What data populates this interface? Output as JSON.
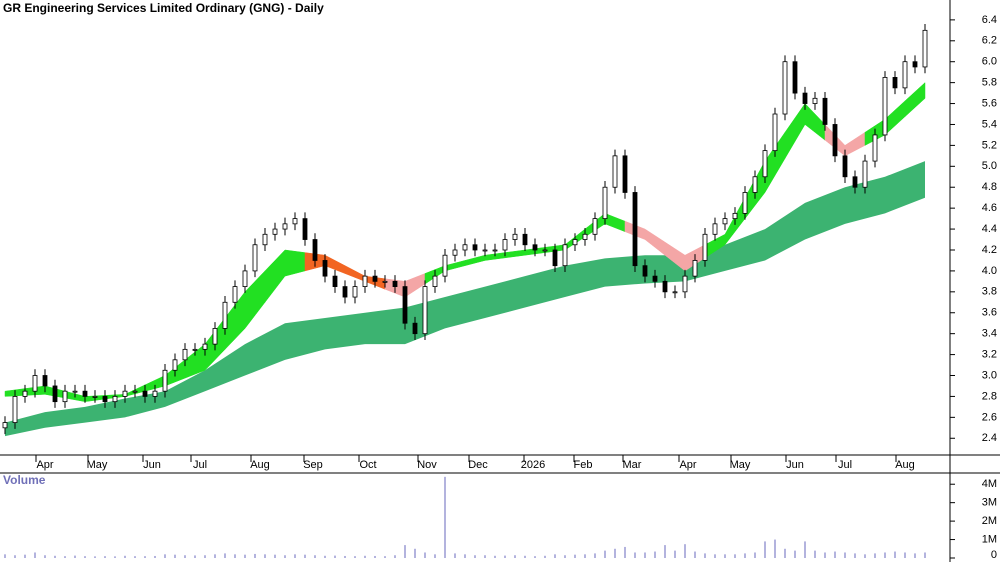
{
  "chart_data": [
    {
      "type": "candlestick",
      "title": "GR Engineering Services Limited Ordinary (GNG) - Daily",
      "open": [
        2.5,
        2.55,
        2.8,
        2.85,
        3.0,
        2.9,
        2.75,
        2.85,
        2.85,
        2.8,
        2.8,
        2.75,
        2.8,
        2.85,
        2.85,
        2.8,
        2.85,
        3.05,
        3.15,
        3.25,
        3.25,
        3.3,
        3.45,
        3.7,
        3.85,
        4.0,
        4.25,
        4.35,
        4.4,
        4.45,
        4.5,
        4.3,
        4.1,
        3.95,
        3.85,
        3.75,
        3.85,
        3.95,
        3.9,
        3.9,
        3.85,
        3.5,
        3.4,
        3.85,
        3.95,
        4.15,
        4.2,
        4.25,
        4.2,
        4.2,
        4.2,
        4.3,
        4.35,
        4.25,
        4.2,
        4.2,
        4.05,
        4.25,
        4.3,
        4.35,
        4.5,
        4.8,
        5.1,
        4.75,
        4.05,
        3.95,
        3.9,
        3.8,
        3.8,
        3.95,
        4.1,
        4.35,
        4.45,
        4.5,
        4.55,
        4.75,
        4.9,
        5.15,
        5.5,
        6.0,
        5.7,
        5.6,
        5.65,
        5.4,
        5.1,
        4.9,
        4.8,
        5.05,
        5.3,
        5.85,
        5.75,
        6.0,
        5.95
      ],
      "high": [
        2.61,
        2.86,
        2.91,
        3.06,
        3.06,
        2.96,
        2.91,
        2.91,
        2.91,
        2.86,
        2.86,
        2.86,
        2.91,
        2.91,
        2.91,
        2.91,
        3.11,
        3.21,
        3.31,
        3.31,
        3.36,
        3.51,
        3.76,
        3.91,
        4.06,
        4.31,
        4.41,
        4.46,
        4.51,
        4.56,
        4.56,
        4.36,
        4.16,
        4.01,
        3.91,
        3.91,
        4.01,
        4.01,
        3.96,
        3.96,
        3.91,
        3.56,
        3.91,
        4.01,
        4.21,
        4.26,
        4.31,
        4.31,
        4.26,
        4.26,
        4.36,
        4.41,
        4.41,
        4.31,
        4.26,
        4.26,
        4.31,
        4.36,
        4.41,
        4.56,
        4.86,
        5.16,
        5.16,
        4.81,
        4.11,
        4.01,
        3.96,
        3.86,
        4.01,
        4.16,
        4.41,
        4.51,
        4.56,
        4.61,
        4.81,
        4.96,
        5.21,
        5.56,
        6.06,
        6.06,
        5.76,
        5.71,
        5.71,
        5.46,
        5.16,
        4.96,
        5.11,
        5.36,
        5.91,
        5.91,
        6.06,
        6.06,
        6.36
      ],
      "low": [
        2.44,
        2.49,
        2.74,
        2.79,
        2.84,
        2.69,
        2.69,
        2.79,
        2.74,
        2.74,
        2.69,
        2.69,
        2.74,
        2.79,
        2.74,
        2.74,
        2.79,
        2.99,
        3.09,
        3.19,
        3.19,
        3.24,
        3.39,
        3.64,
        3.79,
        3.94,
        4.19,
        4.29,
        4.34,
        4.39,
        4.24,
        4.04,
        3.89,
        3.79,
        3.69,
        3.69,
        3.79,
        3.84,
        3.84,
        3.79,
        3.44,
        3.34,
        3.34,
        3.79,
        3.89,
        4.09,
        4.14,
        4.14,
        4.14,
        4.14,
        4.14,
        4.24,
        4.19,
        4.14,
        4.14,
        3.99,
        3.99,
        4.19,
        4.24,
        4.29,
        4.44,
        4.74,
        4.69,
        3.99,
        3.89,
        3.84,
        3.74,
        3.74,
        3.74,
        3.89,
        4.04,
        4.29,
        4.39,
        4.44,
        4.49,
        4.69,
        4.84,
        5.09,
        5.44,
        5.64,
        5.54,
        5.54,
        5.34,
        5.04,
        4.84,
        4.74,
        4.74,
        4.99,
        5.24,
        5.69,
        5.69,
        5.89,
        5.89
      ],
      "close": [
        2.55,
        2.8,
        2.85,
        3.0,
        2.9,
        2.75,
        2.85,
        2.85,
        2.8,
        2.8,
        2.75,
        2.8,
        2.85,
        2.85,
        2.8,
        2.85,
        3.05,
        3.15,
        3.25,
        3.25,
        3.3,
        3.45,
        3.7,
        3.85,
        4.0,
        4.25,
        4.35,
        4.4,
        4.45,
        4.5,
        4.3,
        4.1,
        3.95,
        3.85,
        3.75,
        3.85,
        3.95,
        3.9,
        3.9,
        3.85,
        3.5,
        3.4,
        3.85,
        3.95,
        4.15,
        4.2,
        4.25,
        4.2,
        4.2,
        4.2,
        4.3,
        4.35,
        4.25,
        4.2,
        4.2,
        4.05,
        4.25,
        4.3,
        4.35,
        4.5,
        4.8,
        5.1,
        4.75,
        4.05,
        3.95,
        3.9,
        3.8,
        3.8,
        3.95,
        4.1,
        4.35,
        4.45,
        4.5,
        4.55,
        4.75,
        4.9,
        5.15,
        5.5,
        6.0,
        5.7,
        5.6,
        5.65,
        5.4,
        5.1,
        4.9,
        4.8,
        5.05,
        5.3,
        5.85,
        5.75,
        6.0,
        5.95,
        6.3
      ],
      "up_color": "#ffffff",
      "down_color": "#000000",
      "slow_band": {
        "color": "#3cb371",
        "x": [
          0,
          4,
          8,
          12,
          16,
          20,
          24,
          28,
          32,
          36,
          40,
          44,
          48,
          52,
          56,
          60,
          64,
          68,
          72,
          76,
          80,
          84,
          88,
          92
        ],
        "lower": [
          2.42,
          2.5,
          2.55,
          2.6,
          2.7,
          2.85,
          3.0,
          3.15,
          3.25,
          3.3,
          3.3,
          3.45,
          3.55,
          3.65,
          3.75,
          3.85,
          3.88,
          3.9,
          4.0,
          4.1,
          4.3,
          4.45,
          4.55,
          4.7
        ],
        "upper": [
          2.55,
          2.65,
          2.7,
          2.78,
          2.85,
          3.05,
          3.3,
          3.5,
          3.55,
          3.6,
          3.65,
          3.75,
          3.85,
          3.95,
          4.05,
          4.12,
          4.15,
          4.15,
          4.25,
          4.4,
          4.65,
          4.8,
          4.9,
          5.05
        ]
      },
      "fast_band": {
        "x": [
          0,
          4,
          8,
          12,
          16,
          20,
          24,
          28,
          32,
          36,
          40,
          44,
          48,
          52,
          56,
          60,
          64,
          68,
          72,
          76,
          80,
          84,
          88,
          92
        ],
        "lower": [
          2.8,
          2.82,
          2.75,
          2.8,
          2.9,
          3.05,
          3.45,
          3.95,
          4.05,
          3.9,
          3.75,
          4.0,
          4.1,
          4.15,
          4.2,
          4.45,
          4.3,
          4.0,
          4.25,
          4.75,
          5.4,
          5.1,
          5.3,
          5.65
        ],
        "upper": [
          2.85,
          2.9,
          2.8,
          2.82,
          3.0,
          3.3,
          3.8,
          4.2,
          4.15,
          3.95,
          3.9,
          4.05,
          4.15,
          4.2,
          4.25,
          4.55,
          4.4,
          4.15,
          4.35,
          5.05,
          5.6,
          5.2,
          5.45,
          5.8
        ],
        "colors": [
          "#22e022",
          "#22e022",
          "#22e022",
          "#22e022",
          "#22e022",
          "#22e022",
          "#22e022",
          "#22e022",
          "#f26522",
          "#f26522",
          "#f4a6a6",
          "#22e022",
          "#22e022",
          "#22e022",
          "#22e022",
          "#22e022",
          "#f4a6a6",
          "#f4a6a6",
          "#22e022",
          "#22e022",
          "#22e022",
          "#f4a6a6",
          "#22e022",
          "#22e022"
        ]
      },
      "xlim": [
        -0.5,
        94.5
      ],
      "xticks": [
        {
          "value": 4.0,
          "label": "Apr"
        },
        {
          "value": 9.2,
          "label": "May"
        },
        {
          "value": 14.7,
          "label": "Jun"
        },
        {
          "value": 19.5,
          "label": "Jul"
        },
        {
          "value": 25.5,
          "label": "Aug"
        },
        {
          "value": 30.8,
          "label": "Sep"
        },
        {
          "value": 36.3,
          "label": "Oct"
        },
        {
          "value": 42.2,
          "label": "Nov"
        },
        {
          "value": 47.3,
          "label": "Dec"
        },
        {
          "value": 52.8,
          "label": "2026"
        },
        {
          "value": 57.8,
          "label": "Feb"
        },
        {
          "value": 62.7,
          "label": "Mar"
        },
        {
          "value": 68.3,
          "label": "Apr"
        },
        {
          "value": 73.5,
          "label": "May"
        },
        {
          "value": 79.0,
          "label": "Jun"
        },
        {
          "value": 84.0,
          "label": "Jul"
        },
        {
          "value": 90.0,
          "label": "Aug"
        }
      ],
      "ylim": [
        2.24,
        6.59
      ],
      "yticks": [
        2.4,
        2.6,
        2.8,
        {
          "value": 3,
          "label": "3.0"
        },
        3.2,
        3.4,
        3.6,
        3.8,
        {
          "value": 4,
          "label": "4.0"
        },
        4.2,
        4.4,
        4.6,
        4.8,
        {
          "value": 5,
          "label": "5.0"
        },
        5.2,
        5.4,
        5.6,
        5.8,
        {
          "value": 6,
          "label": "6.0"
        },
        6.2,
        6.4
      ]
    },
    {
      "type": "bar",
      "title": "Volume",
      "color": "#8080c8",
      "values": [
        200000,
        150000,
        180000,
        300000,
        150000,
        120000,
        100000,
        130000,
        100000,
        90000,
        100000,
        90000,
        120000,
        100000,
        100000,
        110000,
        200000,
        180000,
        150000,
        140000,
        150000,
        200000,
        250000,
        200000,
        180000,
        220000,
        200000,
        180000,
        150000,
        200000,
        180000,
        150000,
        120000,
        130000,
        110000,
        100000,
        120000,
        110000,
        100000,
        150000,
        700000,
        500000,
        300000,
        200000,
        4400000,
        250000,
        200000,
        150000,
        150000,
        120000,
        130000,
        150000,
        120000,
        100000,
        120000,
        200000,
        150000,
        180000,
        200000,
        250000,
        400000,
        500000,
        600000,
        300000,
        300000,
        350000,
        700000,
        400000,
        750000,
        350000,
        250000,
        200000,
        200000,
        200000,
        250000,
        300000,
        900000,
        1000000,
        500000,
        400000,
        900000,
        400000,
        300000,
        350000,
        300000,
        250000,
        200000,
        250000,
        300000,
        350000,
        300000,
        250000,
        300000
      ],
      "ylim": [
        0,
        4500000
      ],
      "yticks": [
        0,
        {
          "value": 1000000,
          "label": "1M"
        },
        {
          "value": 2000000,
          "label": "2M"
        },
        {
          "value": 3000000,
          "label": "3M"
        },
        {
          "value": 4000000,
          "label": "4M"
        }
      ]
    }
  ]
}
